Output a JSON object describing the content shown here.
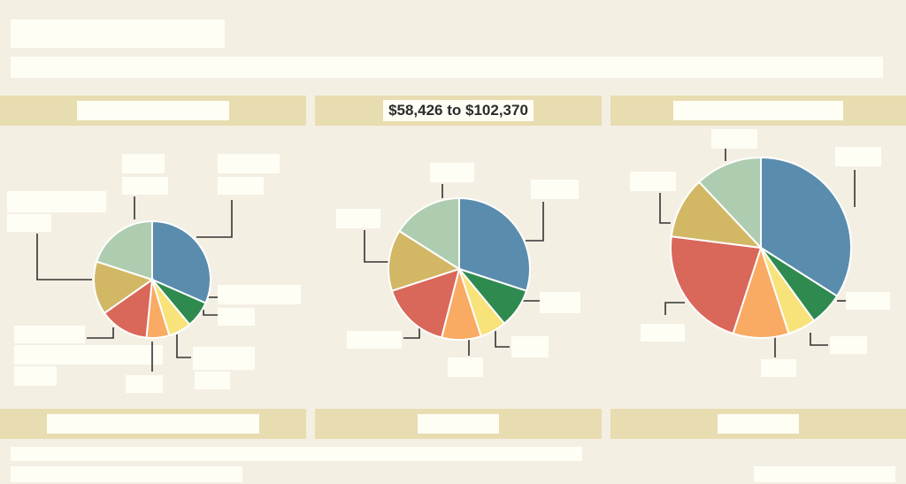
{
  "chart_data": [
    {
      "type": "pie",
      "header": "",
      "footer": "",
      "slices": [
        {
          "value": 30,
          "color": "#5a8cad"
        },
        {
          "value": 7,
          "color": "#2f8a4f"
        },
        {
          "value": 6,
          "color": "#f8e27a"
        },
        {
          "value": 6,
          "color": "#f9aa63"
        },
        {
          "value": 13,
          "color": "#d9675a"
        },
        {
          "value": 14,
          "color": "#d2b865"
        },
        {
          "value": 19,
          "color": "#aecdb0"
        }
      ]
    },
    {
      "type": "pie",
      "header": "$58,426 to $102,370",
      "footer": "",
      "slices": [
        {
          "value": 30,
          "color": "#5a8cad"
        },
        {
          "value": 9,
          "color": "#2f8a4f"
        },
        {
          "value": 6,
          "color": "#f8e27a"
        },
        {
          "value": 9,
          "color": "#f9aa63"
        },
        {
          "value": 16,
          "color": "#d9675a"
        },
        {
          "value": 14,
          "color": "#d2b865"
        },
        {
          "value": 16,
          "color": "#aecdb0"
        }
      ]
    },
    {
      "type": "pie",
      "header": "",
      "footer": "",
      "slices": [
        {
          "value": 34,
          "color": "#5a8cad"
        },
        {
          "value": 6,
          "color": "#2f8a4f"
        },
        {
          "value": 5,
          "color": "#f8e27a"
        },
        {
          "value": 10,
          "color": "#f9aa63"
        },
        {
          "value": 22,
          "color": "#d9675a"
        },
        {
          "value": 11,
          "color": "#d2b865"
        },
        {
          "value": 12,
          "color": "#aecdb0"
        }
      ]
    }
  ]
}
